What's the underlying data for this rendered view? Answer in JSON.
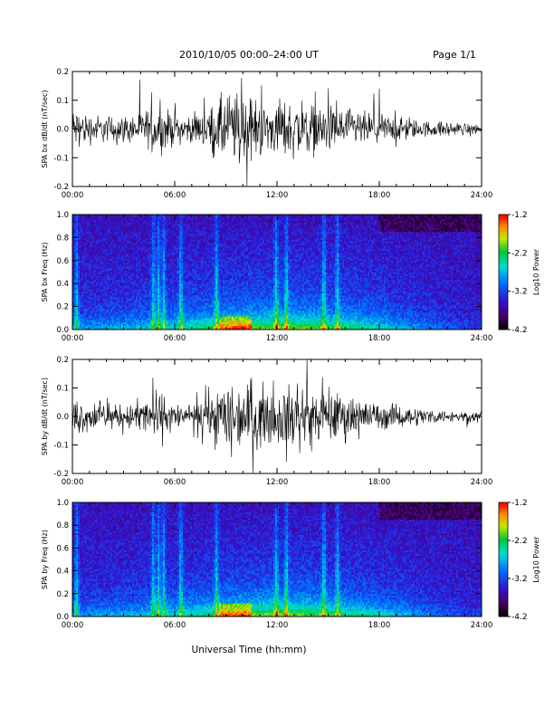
{
  "header": {
    "title": "2010/10/05  00:00–24:00 UT",
    "page": "Page 1/1"
  },
  "x_label": "Universal Time (hh:mm)",
  "chart_data": [
    {
      "type": "line",
      "ylabel": "SPA bx dB/dt (nT/sec)",
      "xlim": [
        "00:00",
        "24:00"
      ],
      "ylim": [
        -0.2,
        0.2
      ],
      "x_ticks": [
        "00:00",
        "06:00",
        "12:00",
        "18:00",
        "24:00"
      ],
      "y_ticks": [
        "-0.2",
        "-0.1",
        "0.0",
        "0.1",
        "0.2"
      ],
      "series": [
        {
          "x_hours": [
            0,
            1,
            2,
            3,
            4,
            5,
            6,
            7,
            8,
            9,
            10,
            11,
            12,
            13,
            14,
            15,
            16,
            17,
            18,
            19,
            20,
            21,
            22,
            23,
            24
          ],
          "amplitude": [
            0.11,
            0.08,
            0.07,
            0.07,
            0.09,
            0.12,
            0.08,
            0.07,
            0.1,
            0.2,
            0.19,
            0.14,
            0.13,
            0.16,
            0.13,
            0.12,
            0.11,
            0.09,
            0.08,
            0.07,
            0.05,
            0.04,
            0.04,
            0.03,
            0.03
          ]
        }
      ]
    },
    {
      "type": "heatmap",
      "ylabel": "SPA bx Freq (Hz)",
      "xlim": [
        "00:00",
        "24:00"
      ],
      "ylim": [
        0.0,
        1.0
      ],
      "x_ticks": [
        "00:00",
        "06:00",
        "12:00",
        "18:00",
        "24:00"
      ],
      "y_ticks": [
        "0.0",
        "0.2",
        "0.4",
        "0.6",
        "0.8",
        "1.0"
      ],
      "colorbar": {
        "label": "Log10 Power",
        "ticks": [
          "-1.2",
          "-2.2",
          "-3.2",
          "-4.2"
        ],
        "range": [
          -4.2,
          -1.2
        ]
      }
    },
    {
      "type": "line",
      "ylabel": "SPA by dB/dt (nT/sec)",
      "xlim": [
        "00:00",
        "24:00"
      ],
      "ylim": [
        -0.2,
        0.2
      ],
      "x_ticks": [
        "00:00",
        "06:00",
        "12:00",
        "18:00",
        "24:00"
      ],
      "y_ticks": [
        "-0.2",
        "-0.1",
        "0.0",
        "0.1",
        "0.2"
      ],
      "series": [
        {
          "x_hours": [
            0,
            1,
            2,
            3,
            4,
            5,
            6,
            7,
            8,
            9,
            10,
            11,
            12,
            13,
            14,
            15,
            16,
            17,
            18,
            19,
            20,
            21,
            22,
            23,
            24
          ],
          "amplitude": [
            0.1,
            0.08,
            0.06,
            0.06,
            0.09,
            0.14,
            0.07,
            0.04,
            0.12,
            0.2,
            0.17,
            0.16,
            0.14,
            0.18,
            0.14,
            0.13,
            0.12,
            0.09,
            0.07,
            0.06,
            0.05,
            0.04,
            0.03,
            0.03,
            0.03
          ]
        }
      ]
    },
    {
      "type": "heatmap",
      "ylabel": "SPA by Freq (Hz)",
      "xlim": [
        "00:00",
        "24:00"
      ],
      "ylim": [
        0.0,
        1.0
      ],
      "x_ticks": [
        "00:00",
        "06:00",
        "12:00",
        "18:00",
        "24:00"
      ],
      "y_ticks": [
        "0.0",
        "0.2",
        "0.4",
        "0.6",
        "0.8",
        "1.0"
      ],
      "colorbar": {
        "label": "Log10 Power",
        "ticks": [
          "-1.2",
          "-2.2",
          "-3.2",
          "-4.2"
        ],
        "range": [
          -4.2,
          -1.2
        ]
      }
    }
  ]
}
